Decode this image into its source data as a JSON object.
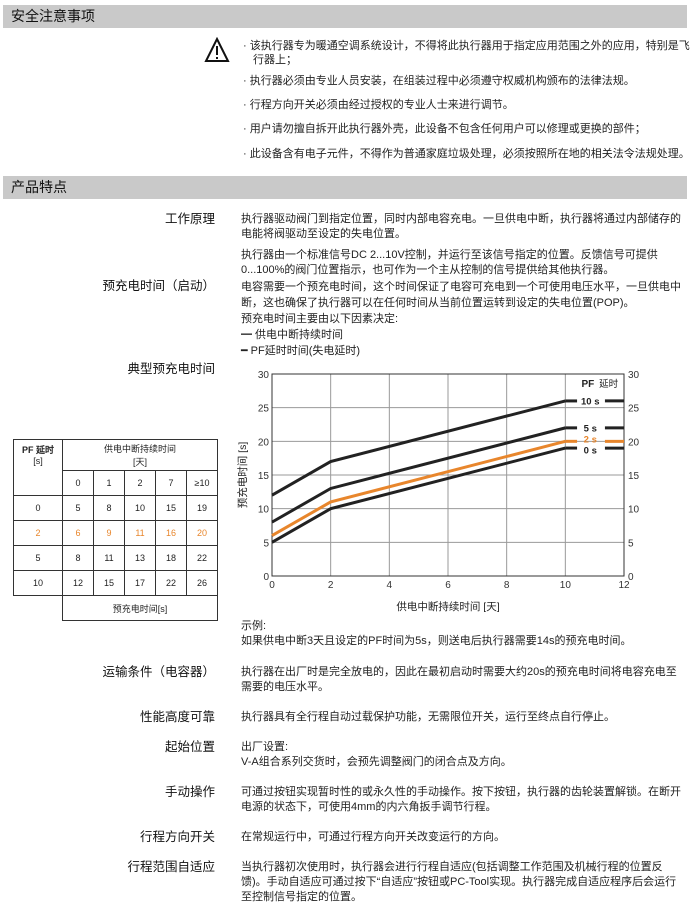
{
  "safety": {
    "title": "安全注意事项",
    "icon": "warning-triangle-icon",
    "bullets": [
      "· 该执行器专为暖通空调系统设计，不得将此执行器用于指定应用范围之外的应用，特别是飞行器上；",
      "· 执行器必须由专业人员安装，在组装过程中必须遵守权威机构颁布的法律法规。",
      "· 行程方向开关必须由经过授权的专业人士来进行调节。",
      "· 用户请勿擅自拆开此执行器外壳，此设备不包含任何用户可以修理或更换的部件；",
      "· 此设备含有电子元件，不得作为普通家庭垃圾处理，必须按照所在地的相关法令法规处理。"
    ]
  },
  "features": {
    "title": "产品特点",
    "working_principle": {
      "label": "工作原理",
      "p1": "执行器驱动阀门到指定位置，同时内部电容充电。一旦供电中断，执行器将通过内部储存的电能将阀驱动至设定的失电位置。",
      "p2": "执行器由一个标准信号DC 2...10V控制，并运行至该信号指定的位置。反馈信号可提供0...100%的阀门位置指示，也可作为一个主从控制的信号提供给其他执行器。"
    },
    "precharge": {
      "label": "预充电时间（启动）",
      "p1": "电容需要一个预充电时间，这个时间保证了电容可充电到一个可使用电压水平，一旦供电中断，这也确保了执行器可以在任何时间从当前位置运转到设定的失电位置(POP)。",
      "p2": "预充电时间主要由以下因素决定:",
      "items": [
        "━ 供电中断持续时间",
        "━ PF延时时间(失电延时)"
      ]
    },
    "typical": {
      "label": "典型预充电时间",
      "example_title": "示例:",
      "example_text": "如果供电中断3天且设定的PF时间为5s，则送电后执行器需要14s的预充电时间。"
    },
    "table": {
      "pf_header": "PF 延时",
      "pf_unit": "[s]",
      "duration_header": "供电中断持续时间",
      "duration_unit": "[天]",
      "columns": [
        "0",
        "1",
        "2",
        "7",
        "≥10"
      ],
      "rows": [
        {
          "pf": "0",
          "values": [
            "5",
            "8",
            "10",
            "15",
            "19"
          ]
        },
        {
          "pf": "2",
          "values": [
            "6",
            "9",
            "11",
            "16",
            "20"
          ]
        },
        {
          "pf": "5",
          "values": [
            "8",
            "11",
            "13",
            "18",
            "22"
          ]
        },
        {
          "pf": "10",
          "values": [
            "12",
            "15",
            "17",
            "22",
            "26"
          ]
        }
      ],
      "footer": "预充电时间[s]",
      "highlight_color": "#e8862c"
    },
    "transport": {
      "label": "运输条件（电容器）",
      "text": "执行器在出厂时是完全放电的，因此在最初启动时需要大约20s的预充电时间将电容充电至需要的电压水平。"
    },
    "reliability": {
      "label": "性能高度可靠",
      "text": "执行器具有全行程自动过载保护功能，无需限位开关，运行至终点自行停止。"
    },
    "start_position": {
      "label": "起始位置",
      "p1": "出厂设置:",
      "p2": "V-A组合系列交货时，会预先调整阀门的闭合点及方向。"
    },
    "manual": {
      "label": "手动操作",
      "text": "可通过按钮实现暂时性的或永久性的手动操作。按下按钮，执行器的齿轮装置解锁。在断开电源的状态下，可使用4mm的内六角扳手调节行程。"
    },
    "direction_switch": {
      "label": "行程方向开关",
      "text": "在常规运行中，可通过行程方向开关改变运行的方向。"
    },
    "adaptation": {
      "label": "行程范围自适应",
      "text": "当执行器初次使用时，执行器会进行行程自适应(包括调整工作范围及机械行程的位置反馈)。手动自适应可通过按下“自适应”按钮或PC-Tool实现。执行器完成自适应程序后会运行至控制信号指定的位置。"
    }
  },
  "chart_data": {
    "type": "line",
    "xlabel": "供电中断持续时间 [天]",
    "ylabel": "预充电时间 [s]",
    "xlim": [
      0,
      12
    ],
    "ylim": [
      0,
      30
    ],
    "xticks": [
      "0",
      "2",
      "4",
      "6",
      "8",
      "10",
      "12"
    ],
    "yticks": [
      "0",
      "5",
      "10",
      "15",
      "20",
      "25",
      "30"
    ],
    "grid": true,
    "legend_title_bold": "PF",
    "legend_title": "延时",
    "legend_placement": "right",
    "series": [
      {
        "name": "10 s",
        "color": "#222222",
        "x": [
          0,
          2,
          10,
          12
        ],
        "y": [
          12,
          17,
          26,
          26
        ]
      },
      {
        "name": "5 s",
        "color": "#222222",
        "x": [
          0,
          2,
          10,
          12
        ],
        "y": [
          8,
          13,
          22,
          22
        ]
      },
      {
        "name": "2 s",
        "color": "#e8862c",
        "x": [
          0,
          2,
          10,
          12
        ],
        "y": [
          6,
          11,
          20,
          20
        ]
      },
      {
        "name": "0 s",
        "color": "#222222",
        "x": [
          0,
          2,
          10,
          12
        ],
        "y": [
          5,
          10,
          19,
          19
        ]
      }
    ]
  }
}
